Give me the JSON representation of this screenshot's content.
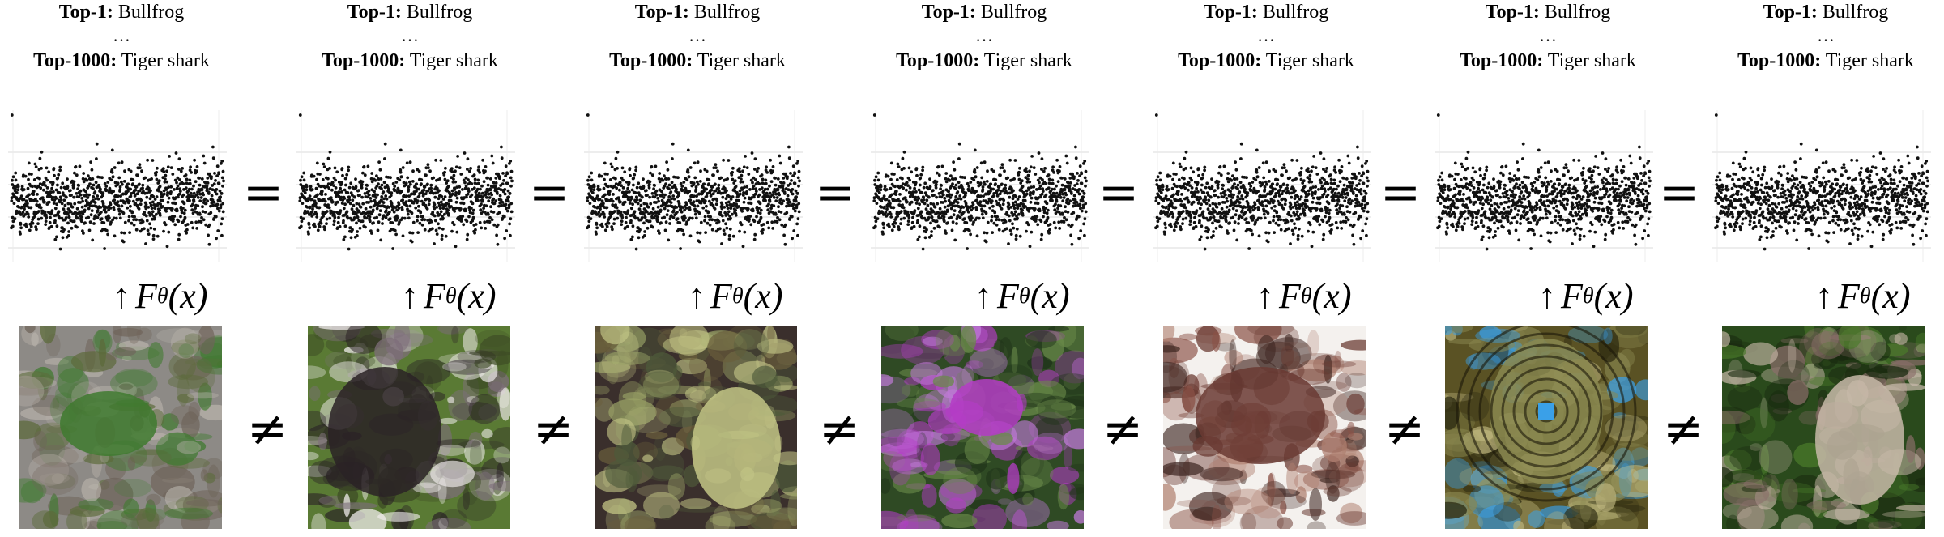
{
  "labels": {
    "top1_prefix": "Top-1:",
    "top1_class": "Bullfrog",
    "ellipsis": "…",
    "top1000_prefix": "Top-1000:",
    "top1000_class": "Tiger shark"
  },
  "function_label": {
    "arrow": "↑",
    "name": "F",
    "subscript": "θ",
    "arg": "(x)"
  },
  "operators": {
    "equal": "=",
    "not_equal": "≠"
  },
  "chart_data": {
    "type": "scatter",
    "title": "",
    "xlabel": "",
    "ylabel": "",
    "n_points": 1000,
    "grid": true,
    "note_values_identical_across_panels": true
  },
  "columns": [
    {
      "image": "bullfrog-on-rocks",
      "palette": [
        "#8d8a86",
        "#5c6a3a",
        "#3f7a2f",
        "#b9b3ab",
        "#6f645a"
      ]
    },
    {
      "image": "colobus-monkey-with-infant",
      "palette": [
        "#5a7a34",
        "#2a2226",
        "#f2eeee",
        "#7d6e7a",
        "#3c4a24"
      ]
    },
    {
      "image": "artichoke-on-patterned-background",
      "palette": [
        "#3a2f2c",
        "#4e5a3a",
        "#9aa267",
        "#c3c586",
        "#6a5e3c"
      ]
    },
    {
      "image": "purple-thistle-flower",
      "palette": [
        "#2f4a24",
        "#b43cc6",
        "#6a8a4a",
        "#c07ad8",
        "#1f3319"
      ]
    },
    {
      "image": "rusty-mechanical-claw",
      "palette": [
        "#f4f1ee",
        "#6a3a32",
        "#8a5146",
        "#3f2722",
        "#b08070"
      ]
    },
    {
      "image": "spiral-staircase-from-above",
      "palette": [
        "#5a5224",
        "#2a2810",
        "#8a8850",
        "#3aa0e8",
        "#c0b880"
      ]
    },
    {
      "image": "elephant-in-grass",
      "palette": [
        "#2a4a1c",
        "#4a7a2a",
        "#8a6e6a",
        "#c7b8a8",
        "#1a2a10"
      ]
    }
  ]
}
